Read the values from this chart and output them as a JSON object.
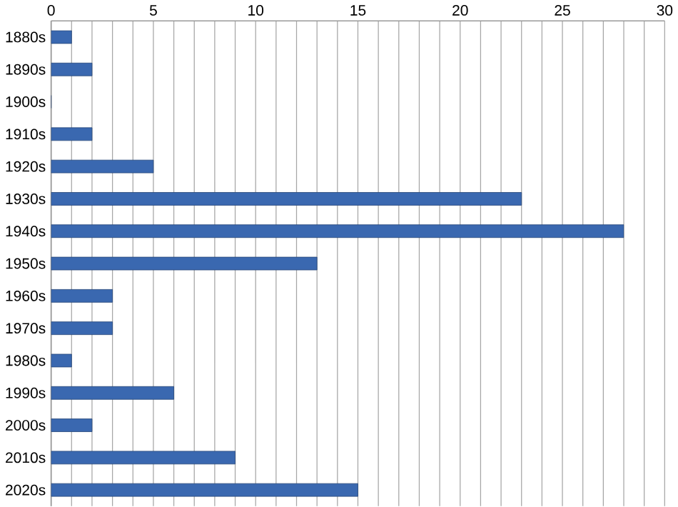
{
  "chart_data": {
    "type": "bar",
    "orientation": "horizontal",
    "categories": [
      "1880s",
      "1890s",
      "1900s",
      "1910s",
      "1920s",
      "1930s",
      "1940s",
      "1950s",
      "1960s",
      "1970s",
      "1980s",
      "1990s",
      "2000s",
      "2010s",
      "2020s"
    ],
    "values": [
      1,
      2,
      0,
      2,
      5,
      23,
      28,
      13,
      3,
      3,
      1,
      6,
      2,
      9,
      15
    ],
    "color": "#3a68b0",
    "xlim": [
      0,
      30
    ],
    "xticks": [
      0,
      {
        "value": 1,
        "label": null
      },
      {
        "value": 2,
        "label": null
      },
      {
        "value": 3,
        "label": null
      },
      {
        "value": 4,
        "label": null
      },
      5,
      {
        "value": 6,
        "label": null
      },
      {
        "value": 7,
        "label": null
      },
      {
        "value": 8,
        "label": null
      },
      {
        "value": 9,
        "label": null
      },
      10,
      {
        "value": 11,
        "label": null
      },
      {
        "value": 12,
        "label": null
      },
      {
        "value": 13,
        "label": null
      },
      {
        "value": 14,
        "label": null
      },
      15,
      {
        "value": 16,
        "label": null
      },
      {
        "value": 17,
        "label": null
      },
      {
        "value": 18,
        "label": null
      },
      {
        "value": 19,
        "label": null
      },
      20,
      {
        "value": 21,
        "label": null
      },
      {
        "value": 22,
        "label": null
      },
      {
        "value": 23,
        "label": null
      },
      {
        "value": 24,
        "label": null
      },
      25,
      {
        "value": 26,
        "label": null
      },
      {
        "value": 27,
        "label": null
      },
      {
        "value": 28,
        "label": null
      },
      {
        "value": 29,
        "label": null
      },
      30
    ],
    "grid": true
  }
}
